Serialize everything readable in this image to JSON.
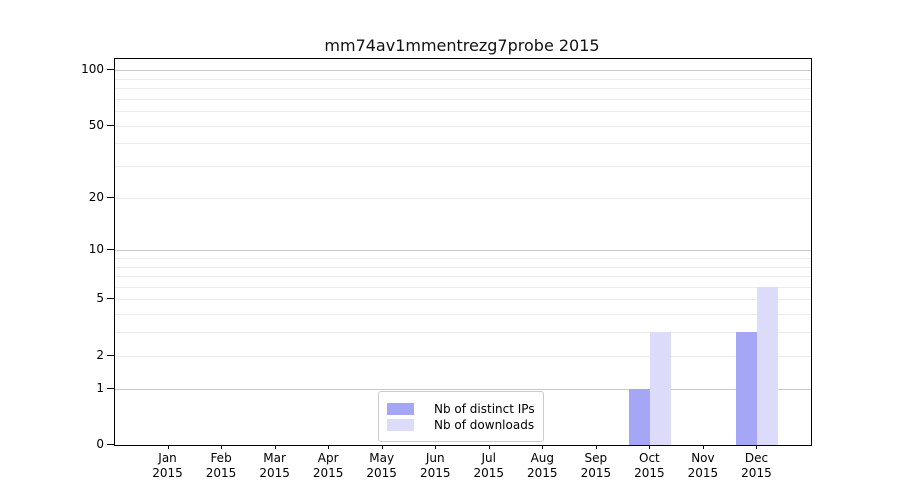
{
  "chart_data": {
    "type": "bar",
    "title": "mm74av1mmentrezg7probe 2015",
    "categories": [
      "Jan",
      "Feb",
      "Mar",
      "Apr",
      "May",
      "Jun",
      "Jul",
      "Aug",
      "Sep",
      "Oct",
      "Nov",
      "Dec"
    ],
    "category_year": "2015",
    "series": [
      {
        "name": "Nb of distinct IPs",
        "color": "#a6a6f7",
        "values": [
          0,
          0,
          0,
          0,
          0,
          0,
          0,
          0,
          0,
          1,
          0,
          3
        ]
      },
      {
        "name": "Nb of downloads",
        "color": "#dcdcfa",
        "values": [
          0,
          0,
          0,
          0,
          0,
          0,
          0,
          0,
          0,
          3,
          0,
          6
        ]
      }
    ],
    "yscale": "log1p",
    "yticks": [
      0,
      1,
      2,
      5,
      10,
      20,
      50,
      100
    ],
    "minor_yticks": [
      3,
      4,
      6,
      7,
      8,
      9,
      30,
      40,
      60,
      70,
      80,
      90
    ],
    "ylim": [
      0,
      110
    ],
    "xlabel": "",
    "ylabel": "",
    "grid": true,
    "legend_position": "lower center inside"
  },
  "colors": {
    "major_grid": "#c9c9c9",
    "minor_grid": "#ebebeb",
    "spine": "#000000"
  }
}
